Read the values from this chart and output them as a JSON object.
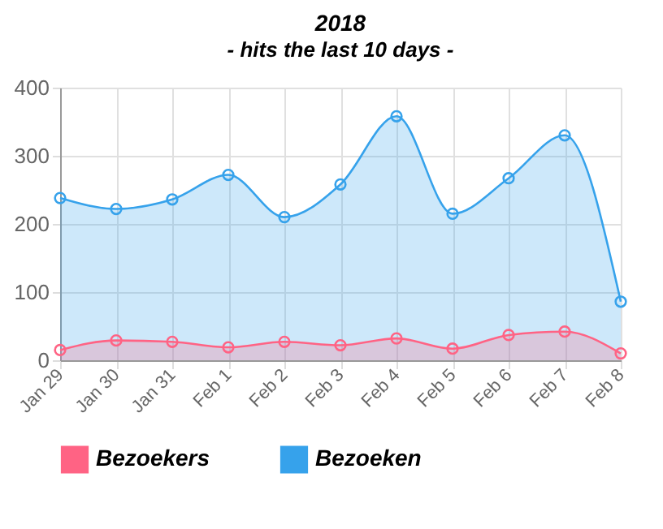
{
  "chart_data": {
    "type": "area",
    "title": "2018",
    "subtitle": "- hits the last 10 days -",
    "categories": [
      "Jan 29",
      "Jan 30",
      "Jan 31",
      "Feb 1",
      "Feb 2",
      "Feb 3",
      "Feb 4",
      "Feb 5",
      "Feb 6",
      "Feb 7",
      "Feb 8"
    ],
    "series": [
      {
        "name": "Bezoekers",
        "color": "#ff6384",
        "values": [
          15,
          29,
          27,
          19,
          27,
          22,
          32,
          17,
          37,
          42,
          10
        ]
      },
      {
        "name": "Bezoeken",
        "color": "#36a2eb",
        "values": [
          238,
          222,
          236,
          272,
          210,
          258,
          358,
          215,
          267,
          330,
          86
        ]
      }
    ],
    "ylim": [
      0,
      400
    ],
    "yticks": [
      0,
      100,
      200,
      300,
      400
    ],
    "grid": true,
    "legend": "bottom",
    "marker": "circle",
    "line_style": "solid"
  }
}
